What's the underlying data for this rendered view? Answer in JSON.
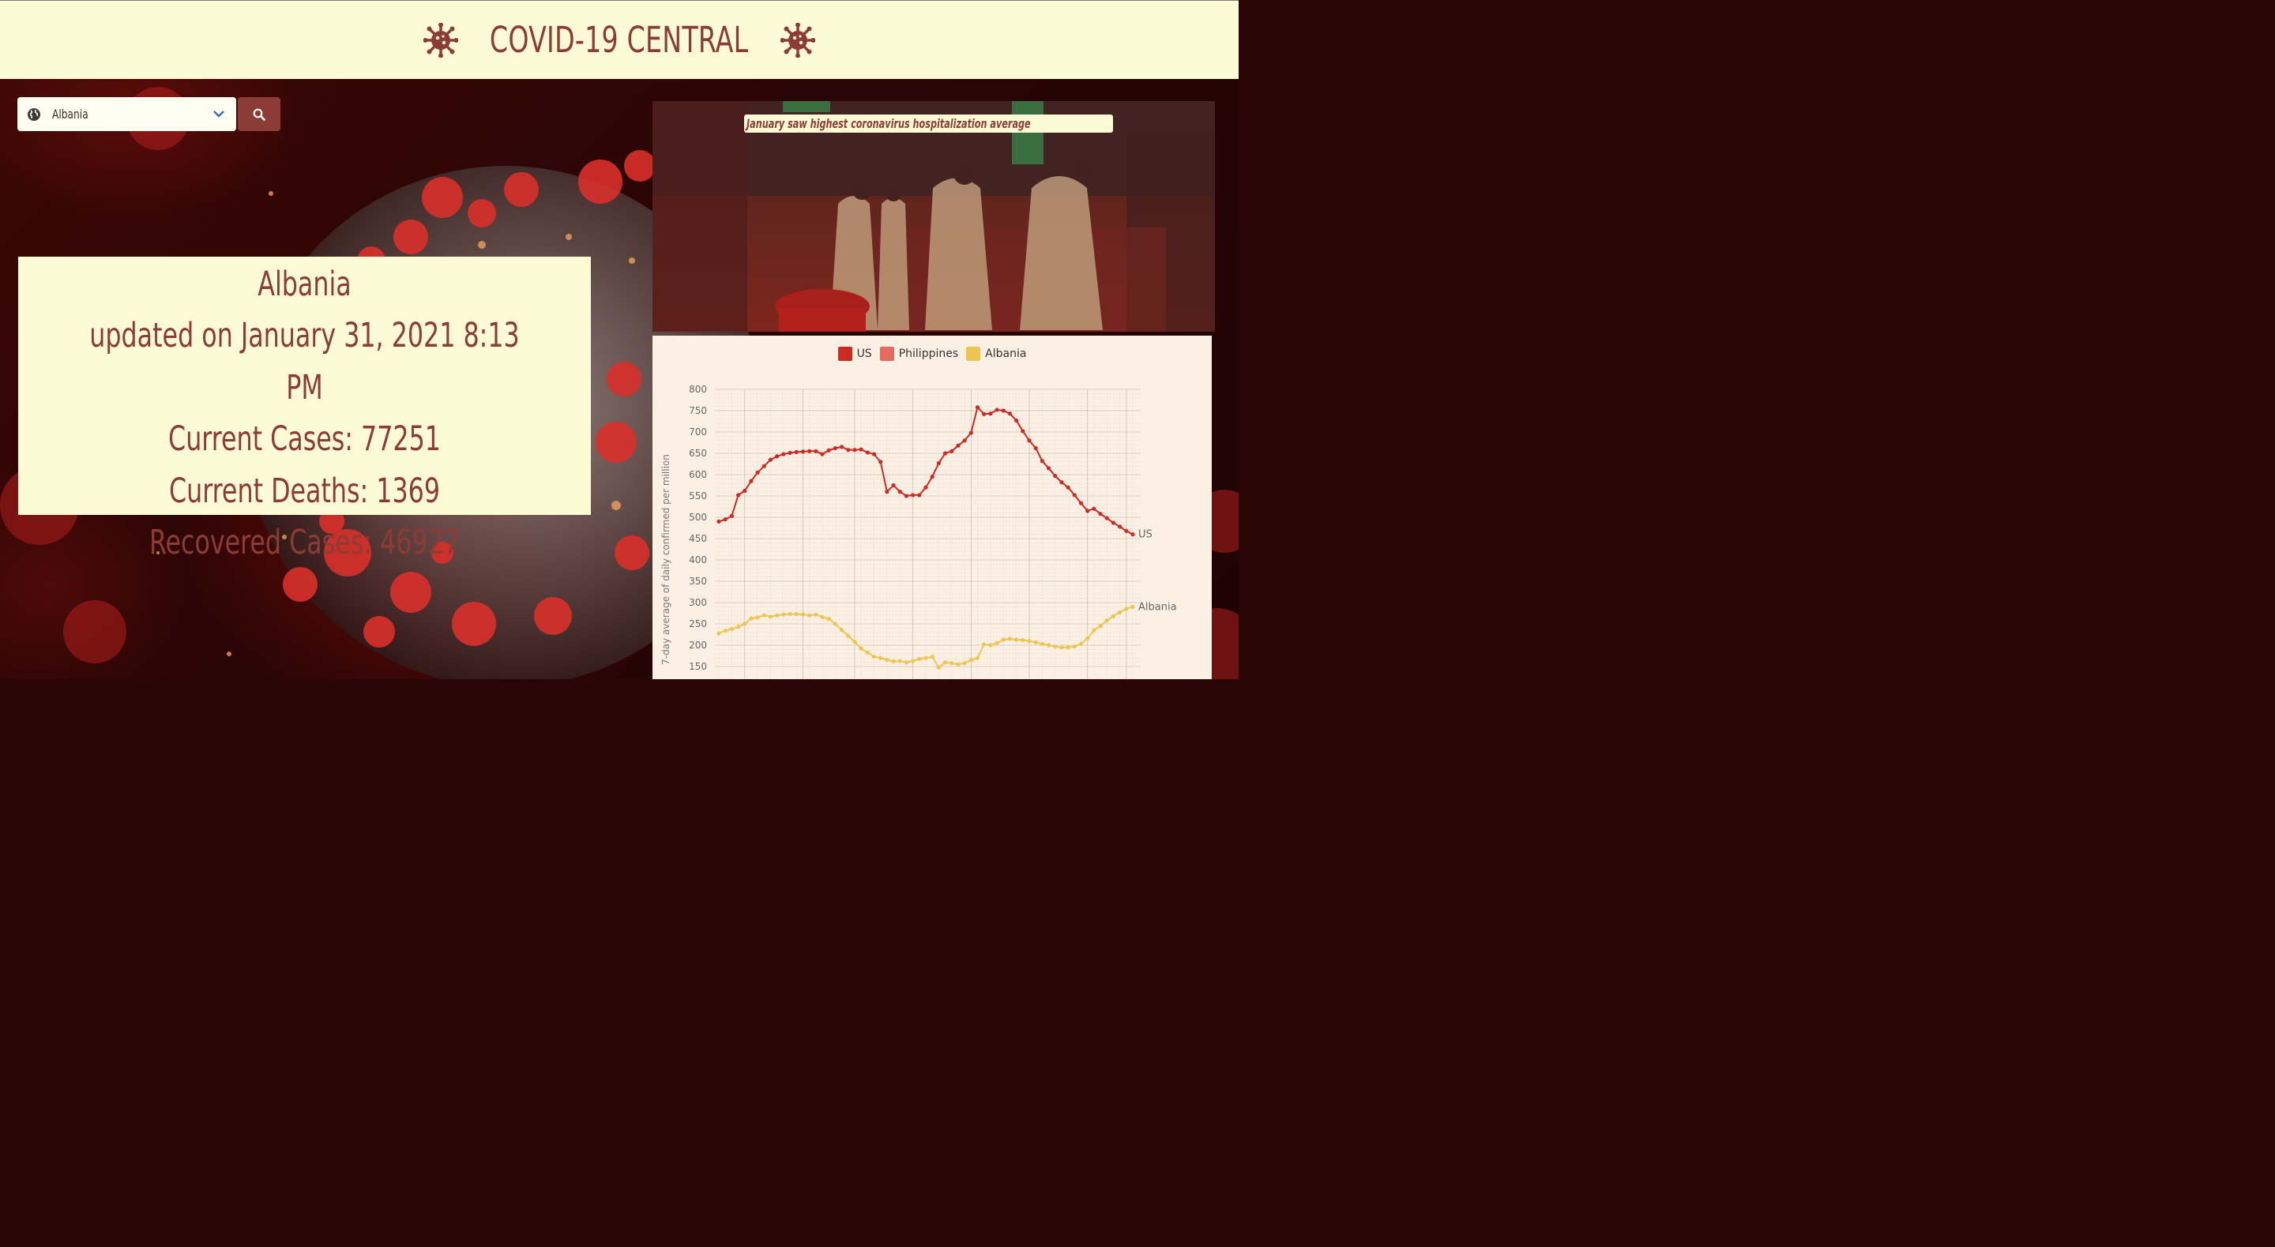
{
  "header": {
    "title": "COVID-19 CENTRAL"
  },
  "search": {
    "selected_country": "Albania"
  },
  "stats": {
    "country": "Albania",
    "updated": "updated on January 31, 2021 8:13 PM",
    "cases": "Current Cases: 77251",
    "deaths": "Current Deaths: 1369",
    "recovered": "Recovered Cases: 46927"
  },
  "news": {
    "headline": "January saw highest coronavirus hospitalization average"
  },
  "colors": {
    "brand": "#8b3d35",
    "cream": "#fdfbd6",
    "us": "#cc2a23",
    "philippines": "#e06b5e",
    "albania": "#edc651"
  },
  "chart_data": {
    "type": "line",
    "ylabel": "7-day average of daily confirmed per million",
    "ylim": [
      150,
      800
    ],
    "yticks": [
      800,
      750,
      700,
      650,
      600,
      550,
      500,
      450,
      400,
      350,
      300,
      250,
      200,
      150
    ],
    "legend": [
      "US",
      "Philippines",
      "Albania"
    ],
    "series": [
      {
        "name": "US",
        "color": "#cc2a23",
        "end_label": "US",
        "values": [
          490,
          495,
          503,
          552,
          562,
          585,
          605,
          620,
          635,
          643,
          648,
          651,
          653,
          654,
          655,
          655,
          648,
          657,
          662,
          665,
          658,
          658,
          659,
          652,
          648,
          630,
          560,
          575,
          560,
          550,
          552,
          552,
          570,
          595,
          627,
          650,
          655,
          668,
          680,
          698,
          758,
          742,
          743,
          752,
          750,
          743,
          727,
          702,
          680,
          662,
          632,
          615,
          597,
          582,
          570,
          552,
          533,
          515,
          520,
          508,
          498,
          487,
          478,
          468,
          460
        ]
      },
      {
        "name": "Albania",
        "color": "#edc651",
        "end_label": "Albania",
        "values": [
          228,
          234,
          238,
          243,
          250,
          263,
          265,
          270,
          267,
          270,
          272,
          273,
          273,
          272,
          270,
          272,
          266,
          262,
          250,
          236,
          222,
          208,
          192,
          183,
          173,
          170,
          166,
          162,
          163,
          160,
          163,
          168,
          170,
          173,
          148,
          160,
          158,
          155,
          158,
          165,
          170,
          202,
          200,
          205,
          213,
          215,
          213,
          212,
          210,
          207,
          203,
          200,
          197,
          195,
          195,
          197,
          203,
          216,
          235,
          245,
          258,
          268,
          277,
          285,
          290
        ]
      }
    ]
  }
}
